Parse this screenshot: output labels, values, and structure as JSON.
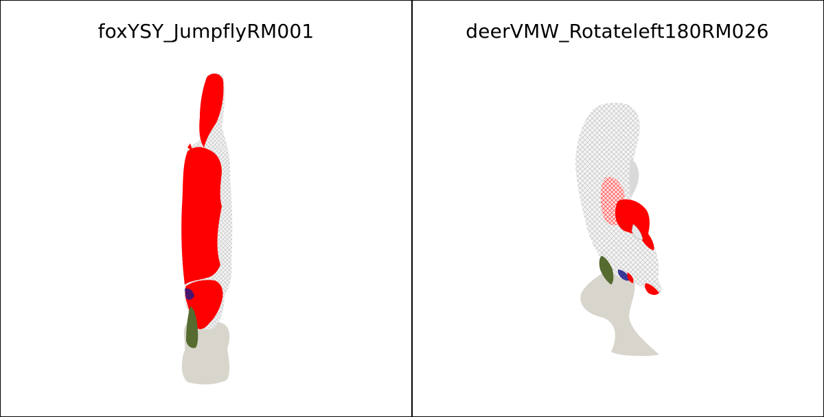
{
  "panels": [
    {
      "title": "foxYSY_JumpflyRM001"
    },
    {
      "title": "deerVMW_Rotateleft180RM026"
    }
  ],
  "colors": {
    "mesh_highlight": "#ff0000",
    "mesh_base": "#e6e6e6",
    "shadow": "#d8d5cc",
    "accent_green": "#556b2f",
    "accent_blue": "#1a1a8a"
  },
  "icons": {
    "left_scene": "fox-mesh-render",
    "right_scene": "deer-mesh-render"
  }
}
